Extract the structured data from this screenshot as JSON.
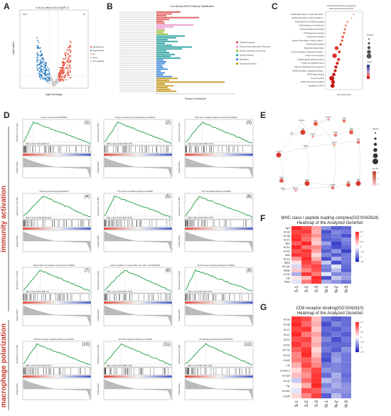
{
  "panels": {
    "A": {
      "letter": "A",
      "title": "S-vs-N.p-value=0.05 & log2FC>1",
      "xlabel": "log2FoldChange",
      "ylabel": "-log10 pvalue",
      "legend": [
        "Significant up",
        "Significant down",
        "Up",
        "Down",
        "Non-significant"
      ],
      "colors": {
        "up": "#e8503a",
        "down": "#2f7fc1",
        "ns": "#c8c8c8"
      },
      "counts": {
        "up_label": "Up",
        "down_label": "Down"
      }
    },
    "B": {
      "letter": "B",
      "title": "S-vs-N(Total) KEGG Pathway Classification",
      "xlabel": "Percent of Genes(%)",
      "legend": [
        "Cellular Processes",
        "Environmental Information Processing",
        "Genetic Information Processing",
        "Human Diseases",
        "Metabolism",
        "Organismal Systems"
      ],
      "legend_colors": [
        "#e06666",
        "#e9a2d0",
        "#a6c44a",
        "#39a7a6",
        "#4a90d9",
        "#c8a030"
      ]
    },
    "C": {
      "letter": "C",
      "title": "enrichment-reactome-immunity(Up)",
      "subtitle": "Reactome Enrichment top 20",
      "xlabel": "Enrichment score",
      "terms": [
        "Erythrocytes take up oxygen and relea...",
        "Erythrocytes take up carbon dioxide a...",
        "CD28 dependent PI3K/Akt signaling",
        "Initial triggering of complement",
        "Endosomal/Vacuolar pathway",
        "ER-Phagosome pathway",
        "Complement cascade",
        "Antigen Presentation: Folding, assem...",
        "Antimicrobial peptides",
        "Neutrophil degranulation",
        "Immunoregulatory interactions betwee...",
        "Innate Immune System",
        "Peptide ligand-binding receptors",
        "G alpha (q) signalling events",
        "Class A/1 (Rhodopsin-like receptors)",
        "Platelet activation, signaling and aggr...",
        "GPCR ligand binding",
        "Immune System",
        "GPCR downstream signaling",
        "Signaling by GPCR"
      ],
      "legend_title_size": "Number",
      "legend_title_color": "qvalue"
    },
    "D": {
      "letter": "D",
      "group_labels": [
        "immunity activation",
        "macrophage polarization"
      ],
      "ylabel": "Enrichment score (ES)",
      "ylabel2": "Ranked Metric",
      "plots": [
        {
          "num": "(1)",
          "title": "immune response(GO:0006955)",
          "nes": "NES: 1.76  p<0.001  FDR: 0.0"
        },
        {
          "num": "(2)",
          "title": "Antigen processing and presentation(mmu04612)",
          "nes": "NES: 2.32  p<0.001  FDR<0.001"
        },
        {
          "num": "(3)",
          "title": "MHC class I peptide loading complex(GO:0042824)",
          "nes": "NES: 2.31  p<0.001  FDR: 0.001"
        },
        {
          "num": "(4)",
          "title": "CD8 receptor binding(GO:0042610)",
          "nes": "NES: 2.21  p<0.001  FDR<0.001"
        },
        {
          "num": "(5)",
          "title": "Th1 and Th2 cell differentiation(mmu04658)",
          "nes": "NES: 1.83  p<0.001  FDR: 0.006"
        },
        {
          "num": "(6)",
          "title": "Th17 cell differentiation(mmu04659)",
          "nes": "NES: 1.82  p<0.001  FDR: 0.007"
        },
        {
          "num": "(7)",
          "title": "Natural killer cell mediated cytotoxicity(mmu04650)",
          "nes": "NES: 2.16  p<0.001  FDR: 0.0"
        },
        {
          "num": "(8)",
          "title": "positive regulation of natural killer cell mediat...(GO:0045954)",
          "nes": "NES: 1.61  p<0.001  FDR: 0.003"
        },
        {
          "num": "(9)",
          "title": "B cell receptor signaling pathway(mmu04662)",
          "nes": "NES: 1.6  p<0.001  FDR: 0.007"
        },
        {
          "num": "(10)",
          "title": "NOD-like receptor signaling pathway(mmu04621)",
          "nes": "NES: 1.78  p<0.001  FDR: 0.015"
        },
        {
          "num": "(11)",
          "title": "JAK-STAT signaling pathway(mmu04630)",
          "nes": "NES: 1.49  p<0.001  FDR: 0.029"
        },
        {
          "num": "(12)",
          "title": "IKK signaling in kidney disease(WP3657)",
          "nes": "NES: 1.6  p<0.001  FDR: 0.032"
        }
      ]
    },
    "E": {
      "letter": "E",
      "nodes": [
        "Fcer1a",
        "Dmbt1",
        "Cd4",
        "Ptprc",
        "Itk",
        "Lck",
        "Il2rb",
        "Cd3e",
        "Cd8a",
        "Lcn2",
        "Nkg7",
        "Cd247",
        "Cd2",
        "Cd3d",
        "Klrd1",
        "Mafb",
        "Mpeg1",
        "Cd79a",
        "Itgb2",
        "Cdl8"
      ],
      "legend_degree": "Degree",
      "legend_fc": "log_FC",
      "fc_ticks": [
        "4",
        "3",
        "2"
      ]
    },
    "F": {
      "letter": "F",
      "title1": "MHC class I peptide loading complex(GO:0042824)",
      "title2": "Heatmap of the Analyzed GeneSet",
      "rows": [
        "Tap1",
        "H2-Q4",
        "H2-Q6",
        "H2-K1",
        "Tap2",
        "H2-D1",
        "H2-Q7",
        "B2m",
        "H2-Q1",
        "Tapbp",
        "H2-Q10",
        "Tapbpl",
        "H2-Q2",
        "Calr",
        "Pdia3"
      ],
      "cols": [
        "S-1",
        "S-2",
        "S-3",
        "N-1",
        "N-2",
        "N-3"
      ],
      "values": [
        [
          1.6,
          1.3,
          0.7,
          -0.8,
          -1.2,
          -1.1
        ],
        [
          1.4,
          1.5,
          0.6,
          -1.3,
          -0.9,
          -1.0
        ],
        [
          1.5,
          1.2,
          0.8,
          -1.1,
          -1.0,
          -1.3
        ],
        [
          1.7,
          1.1,
          0.5,
          -1.2,
          -1.1,
          -0.9
        ],
        [
          1.2,
          1.6,
          0.4,
          -0.7,
          -1.4,
          -1.0
        ],
        [
          1.6,
          1.0,
          0.9,
          -1.0,
          -1.3,
          -1.1
        ],
        [
          1.3,
          1.5,
          0.7,
          -1.2,
          -0.8,
          -1.4
        ],
        [
          1.5,
          1.4,
          0.3,
          -0.9,
          -1.2,
          -1.0
        ],
        [
          0.8,
          1.6,
          0.6,
          -1.3,
          -0.6,
          -1.0
        ],
        [
          0.2,
          1.4,
          1.1,
          -0.4,
          -1.3,
          -1.0
        ],
        [
          -0.3,
          1.2,
          1.4,
          -0.9,
          -0.2,
          -1.1
        ],
        [
          0.4,
          0.9,
          1.3,
          -1.0,
          -0.5,
          -1.2
        ],
        [
          -0.6,
          1.5,
          1.0,
          -0.2,
          -0.9,
          -0.8
        ],
        [
          0.2,
          0.5,
          1.6,
          -1.3,
          -0.4,
          -0.7
        ],
        [
          -0.2,
          1.0,
          1.5,
          -0.6,
          -0.8,
          -1.0
        ]
      ],
      "scale_ticks": [
        "1.5",
        "1",
        "0.5",
        "0",
        "-0.5",
        "-1",
        "-1.5"
      ]
    },
    "G": {
      "letter": "G",
      "title1": "CD8 receptor binding(GO:0042610)",
      "title2": "Heatmap of the Analyzed GeneSet",
      "rows": [
        "H2-Q4",
        "H2-Q6",
        "H2-K1",
        "H2-Q7",
        "H2-D1",
        "H2-Q7",
        "H2-T22",
        "H2-Q1",
        "H2-M2",
        "Lck",
        "H2-M10.1",
        "H2-Q10",
        "H2-Q2",
        "Fyn",
        "H2-M11",
        "H2-M5"
      ],
      "cols": [
        "S-1",
        "S-2",
        "S-3",
        "N-1",
        "N-2",
        "N-3"
      ],
      "values": [
        [
          1.5,
          1.3,
          0.5,
          -1.0,
          -1.2,
          -1.1
        ],
        [
          1.6,
          1.1,
          0.6,
          -1.3,
          -0.9,
          -1.1
        ],
        [
          1.4,
          1.5,
          0.4,
          -1.1,
          -1.2,
          -1.0
        ],
        [
          1.7,
          1.0,
          0.7,
          -1.2,
          -1.0,
          -1.2
        ],
        [
          1.3,
          1.4,
          0.5,
          -0.9,
          -1.3,
          -1.0
        ],
        [
          1.5,
          1.2,
          0.6,
          -1.1,
          -1.1,
          -1.1
        ],
        [
          1.2,
          1.5,
          0.3,
          -1.0,
          -1.2,
          -0.8
        ],
        [
          0.9,
          1.6,
          0.5,
          -1.2,
          -0.8,
          -1.0
        ],
        [
          1.0,
          1.2,
          0.8,
          -1.3,
          -0.7,
          -1.0
        ],
        [
          0.6,
          1.4,
          0.9,
          -1.0,
          -0.9,
          -1.0
        ],
        [
          0.3,
          1.0,
          1.4,
          -0.8,
          -0.9,
          -1.0
        ],
        [
          0.5,
          0.8,
          1.5,
          -1.1,
          -0.6,
          -1.1
        ],
        [
          -0.4,
          1.1,
          1.5,
          -0.5,
          -0.7,
          -1.0
        ],
        [
          0.1,
          0.6,
          1.6,
          -0.9,
          -0.6,
          -0.8
        ],
        [
          -0.2,
          1.3,
          1.2,
          -0.7,
          -0.8,
          -0.8
        ],
        [
          0.3,
          0.9,
          1.4,
          -1.2,
          -0.5,
          -0.9
        ]
      ],
      "scale_ticks": [
        "1.5",
        "1",
        "0.5",
        "0",
        "-0.5",
        "-1",
        "-1.5"
      ]
    }
  }
}
